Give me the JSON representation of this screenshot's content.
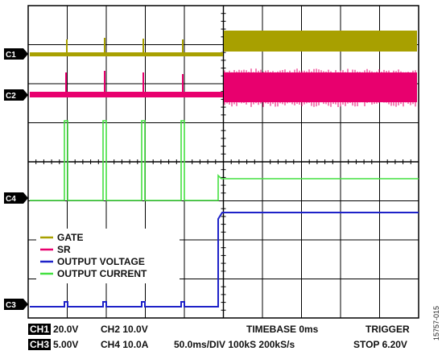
{
  "channel_markers": {
    "c1": "C1",
    "c2": "C2",
    "c3": "C3",
    "c4": "C4"
  },
  "legend": {
    "items": [
      {
        "label": "GATE",
        "color": "#a8a000"
      },
      {
        "label": "SR",
        "color": "#e8006e"
      },
      {
        "label": "OUTPUT VOLTAGE",
        "color": "#1e22c8"
      },
      {
        "label": "OUTPUT CURRENT",
        "color": "#44e040"
      }
    ]
  },
  "readout": {
    "ch1_tag": "CH1",
    "ch1_scale": "20.0V",
    "ch2": "CH2 10.0V",
    "ch3_tag": "CH3",
    "ch3_scale": "5.00V",
    "ch4": "CH4 10.0A",
    "timebase": "TIMEBASE 0ms",
    "sampling": "50.0ms/DIV 100kS 200kS/s",
    "trigger": "TRIGGER",
    "trigger_state": "STOP 6.20V"
  },
  "figure_id": "15757-015",
  "colors": {
    "gate": "#a8a000",
    "sr": "#e8006e",
    "output_voltage": "#1e22c8",
    "output_current": "#44e040",
    "grid": "#000000",
    "marker_bg": "#000000"
  }
}
